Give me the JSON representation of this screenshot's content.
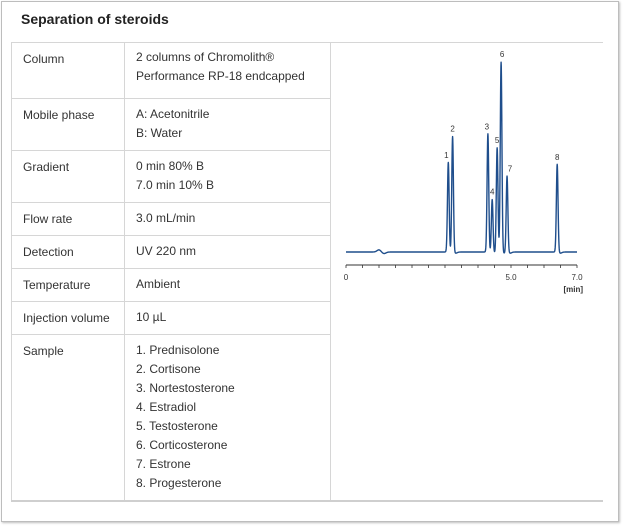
{
  "title": "Separation of steroids",
  "rows": [
    {
      "label": "Column",
      "lines": [
        "2 columns of Chromolith®",
        "Performance RP-18 endcapped"
      ]
    },
    {
      "label": "Mobile phase",
      "lines": [
        "A: Acetonitrile",
        "B: Water"
      ]
    },
    {
      "label": "Gradient",
      "lines": [
        "0 min 80% B",
        "7.0 min 10% B"
      ]
    },
    {
      "label": "Flow rate",
      "lines": [
        "3.0 mL/min"
      ]
    },
    {
      "label": "Detection",
      "lines": [
        "UV 220 nm"
      ]
    },
    {
      "label": "Temperature",
      "lines": [
        "Ambient"
      ]
    },
    {
      "label": "Injection volume",
      "lines": [
        "10 µL"
      ]
    },
    {
      "label": "Sample",
      "lines": [
        "1. Prednisolone",
        "2. Cortisone",
        "3. Nortestosterone",
        "4. Estradiol",
        "5. Testosterone",
        "6. Corticosterone",
        "7. Estrone",
        "8. Progesterone"
      ]
    }
  ],
  "chart_data": {
    "type": "line",
    "title": "",
    "xlabel": "[min]",
    "ylabel": "",
    "xlim": [
      0,
      7.0
    ],
    "xticks": [
      "0",
      "5.0",
      "7.0"
    ],
    "grid": false,
    "line_color": "#1f4e8c",
    "peaks": [
      {
        "label": "1",
        "x": 3.1,
        "height": 0.47
      },
      {
        "label": "2",
        "x": 3.23,
        "height": 0.61
      },
      {
        "label": "3",
        "x": 4.3,
        "height": 0.62
      },
      {
        "label": "4",
        "x": 4.43,
        "height": 0.28
      },
      {
        "label": "5",
        "x": 4.58,
        "height": 0.55
      },
      {
        "label": "6",
        "x": 4.7,
        "height": 1.0
      },
      {
        "label": "7",
        "x": 4.88,
        "height": 0.4
      },
      {
        "label": "8",
        "x": 6.4,
        "height": 0.46
      }
    ]
  }
}
